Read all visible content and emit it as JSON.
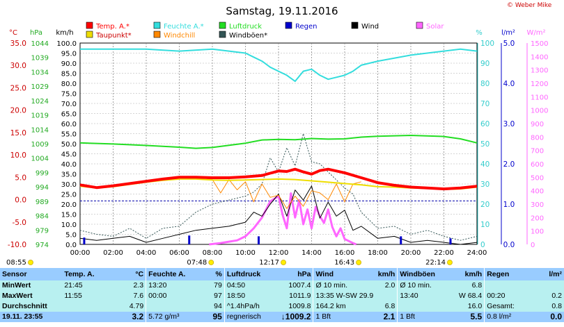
{
  "chart_data": {
    "type": "line",
    "title": "Samstag, 19.11.2016",
    "x_labels": [
      "00:00",
      "02:00",
      "04:00",
      "06:00",
      "08:00",
      "10:00",
      "12:00",
      "14:00",
      "16:00",
      "18:00",
      "20:00",
      "22:00",
      "24:00"
    ],
    "xlim": [
      0,
      24
    ],
    "grid": true,
    "legend": [
      {
        "label": "Temp. A.*",
        "color": "#ff0000"
      },
      {
        "label": "Feuchte A.*",
        "color": "#33dddd"
      },
      {
        "label": "Luftdruck",
        "color": "#22dd22"
      },
      {
        "label": "Regen",
        "color": "#0000cc"
      },
      {
        "label": "Wind",
        "color": "#000000"
      },
      {
        "label": "Solar",
        "color": "#ff66ff"
      },
      {
        "label": "Taupunkt*",
        "color": "#eedd00"
      },
      {
        "label": "Windchill",
        "color": "#ff8800"
      },
      {
        "label": "Windböen*",
        "color": "#335555"
      }
    ],
    "axes": {
      "temp": {
        "unit": "°C",
        "ticks": [
          "35.0",
          "30.0",
          "25.0",
          "20.0",
          "15.0",
          "10.0",
          "5.0",
          "0.0",
          "-5.0",
          "-10.0"
        ],
        "range": [
          -10,
          35
        ],
        "color": "#cc0000"
      },
      "press": {
        "unit": "hPa",
        "ticks": [
          "1044",
          "1039",
          "1034",
          "1029",
          "1024",
          "1019",
          "1014",
          "1009",
          "1004",
          "999",
          "994",
          "989",
          "984",
          "979",
          "974"
        ],
        "range": [
          974,
          1044
        ],
        "color": "#22aa22"
      },
      "wind": {
        "unit": "km/h",
        "ticks": [
          "100.0",
          "95.0",
          "90.0",
          "85.0",
          "80.0",
          "75.0",
          "70.0",
          "65.0",
          "60.0",
          "55.0",
          "50.0",
          "45.0",
          "40.0",
          "35.0",
          "30.0",
          "25.0",
          "20.0",
          "15.0",
          "10.0",
          "5.0",
          "0.0"
        ],
        "range": [
          0,
          100
        ],
        "color": "#000000"
      },
      "hum": {
        "unit": "%",
        "ticks": [
          "100",
          "90",
          "80",
          "70",
          "60",
          "50",
          "40",
          "30",
          "20",
          "10",
          "0"
        ],
        "range": [
          0,
          100
        ],
        "color": "#33cccc"
      },
      "rain": {
        "unit": "l/m²",
        "ticks": [
          "5.0",
          "4.0",
          "3.0",
          "2.0",
          "1.0",
          "0.0"
        ],
        "range": [
          0,
          5
        ],
        "color": "#0000cc"
      },
      "solar": {
        "unit": "W/m²",
        "ticks": [
          "1500",
          "1400",
          "1300",
          "1200",
          "1100",
          "1000",
          "900",
          "800",
          "700",
          "600",
          "500",
          "400",
          "300",
          "200",
          "100",
          "0"
        ],
        "range": [
          0,
          1500
        ],
        "color": "#ff66ff"
      }
    },
    "series": [
      {
        "name": "Temp. A.*",
        "axis": "temp",
        "color": "#ff0000",
        "x": [
          0,
          1,
          2,
          3,
          4,
          5,
          6,
          7,
          8,
          9,
          10,
          11,
          11.5,
          12,
          12.5,
          13,
          13.5,
          14,
          14.5,
          15,
          16,
          17,
          18,
          19,
          20,
          21,
          22,
          23,
          24
        ],
        "y": [
          3.3,
          2.7,
          3.1,
          3.6,
          4.1,
          4.6,
          5.0,
          5.0,
          4.9,
          4.9,
          5.1,
          5.4,
          5.9,
          6.4,
          6.3,
          6.8,
          6.2,
          5.7,
          6.5,
          6.8,
          6.0,
          4.9,
          3.8,
          3.2,
          2.8,
          2.6,
          2.4,
          2.6,
          3.0
        ]
      },
      {
        "name": "Taupunkt*",
        "axis": "temp",
        "color": "#eedd00",
        "x": [
          0,
          1,
          2,
          3,
          4,
          5,
          6,
          7,
          8,
          9,
          10,
          11,
          12,
          13,
          14,
          15,
          16,
          17,
          18,
          19,
          20,
          21,
          22,
          23,
          24
        ],
        "y": [
          3.0,
          2.6,
          2.9,
          3.4,
          3.9,
          4.3,
          4.6,
          4.6,
          4.4,
          4.3,
          4.4,
          4.5,
          4.6,
          4.5,
          4.2,
          3.9,
          3.6,
          3.3,
          2.9,
          2.8,
          2.6,
          2.5,
          2.3,
          2.4,
          2.8
        ]
      },
      {
        "name": "Windchill",
        "axis": "temp",
        "color": "#ff8800",
        "x": [
          7.5,
          8,
          8.5,
          9,
          9.5,
          10,
          10.5,
          11,
          11.5,
          12,
          12.5,
          13,
          13.5,
          14,
          14.5,
          15,
          15.5,
          16,
          16.5,
          17
        ],
        "y": [
          4.8,
          4.5,
          1.5,
          4.5,
          2.2,
          4.0,
          -0.5,
          3.5,
          0.5,
          1.0,
          -2.0,
          0.8,
          -1.5,
          2.0,
          1.5,
          0.0,
          3.5,
          -0.5,
          3.5,
          4.0
        ]
      },
      {
        "name": "Luftdruck",
        "axis": "press",
        "color": "#22dd22",
        "x": [
          0,
          2,
          4,
          6,
          7,
          8,
          10,
          11,
          12,
          13,
          14,
          15,
          16,
          17,
          18,
          20,
          22,
          23,
          24
        ],
        "y": [
          1009.3,
          1008.9,
          1008.4,
          1007.8,
          1007.4,
          1007.7,
          1009.2,
          1010.3,
          1010.5,
          1010.4,
          1010.8,
          1010.6,
          1010.7,
          1011.3,
          1011.6,
          1011.9,
          1011.5,
          1010.7,
          1009.3
        ]
      },
      {
        "name": "Feuchte A.*",
        "axis": "hum",
        "color": "#33dddd",
        "x": [
          0,
          2,
          4,
          6,
          8,
          9,
          10,
          10.5,
          11,
          11.5,
          12,
          12.5,
          13,
          13.5,
          14,
          14.5,
          15,
          15.5,
          16,
          16.5,
          17,
          18,
          20,
          22,
          23,
          24
        ],
        "y": [
          97,
          97,
          97,
          96,
          97,
          96,
          95,
          93,
          91,
          88,
          86,
          84,
          81,
          86,
          87,
          84,
          82,
          83,
          84,
          86,
          89,
          91,
          94,
          96,
          97,
          96
        ]
      },
      {
        "name": "Wind",
        "axis": "wind",
        "color": "#000000",
        "x": [
          0,
          1,
          2,
          3,
          4,
          5,
          6,
          7,
          8,
          9,
          10,
          10.5,
          11,
          11.5,
          12,
          12.5,
          13,
          13.5,
          14,
          14.5,
          15,
          15.5,
          16,
          16.5,
          17,
          18,
          19,
          20,
          21,
          22,
          23,
          24
        ],
        "y": [
          3,
          2,
          3,
          4,
          1,
          3,
          5,
          7,
          8,
          9,
          11,
          16,
          14,
          20,
          25,
          14,
          27,
          22,
          29,
          13,
          21,
          14,
          17,
          7,
          9,
          3,
          4,
          1,
          2,
          1,
          0,
          1
        ]
      },
      {
        "name": "Windböen*",
        "axis": "wind",
        "color": "#335555",
        "x": [
          0,
          1,
          2,
          3,
          4,
          5,
          6,
          7,
          8,
          9,
          10,
          10.5,
          11,
          11.5,
          12,
          12.5,
          13,
          13.5,
          14,
          14.5,
          15,
          15.5,
          16,
          16.5,
          17,
          18,
          19,
          20,
          21,
          22,
          23,
          24
        ],
        "y": [
          7,
          5,
          4,
          8,
          3,
          8,
          9,
          16,
          20,
          22,
          24,
          26,
          30,
          43,
          36,
          48,
          39,
          55,
          41,
          40,
          36,
          32,
          28,
          25,
          16,
          8,
          9,
          5,
          7,
          4,
          2,
          4
        ]
      },
      {
        "name": "Solar",
        "axis": "solar",
        "color": "#ff66ff",
        "x": [
          7.8,
          8.5,
          9,
          9.5,
          10,
          10.5,
          11,
          11.5,
          12,
          12.25,
          12.5,
          12.75,
          13,
          13.25,
          13.5,
          13.75,
          14,
          14.25,
          14.5,
          14.75,
          15,
          15.25,
          15.5,
          15.75,
          16,
          16.5,
          16.7
        ],
        "y": [
          0,
          10,
          20,
          30,
          60,
          120,
          200,
          320,
          360,
          220,
          120,
          380,
          200,
          330,
          150,
          260,
          120,
          280,
          210,
          160,
          260,
          130,
          60,
          120,
          40,
          10,
          0
        ]
      }
    ],
    "rain_bars": [
      {
        "x": 0.25,
        "y": 0.17
      },
      {
        "x": 6.6,
        "y": 0.22
      },
      {
        "x": 10.8,
        "y": 0.2
      },
      {
        "x": 19.4,
        "y": 0.2
      },
      {
        "x": 22.4,
        "y": 0.15
      }
    ],
    "marker_line": {
      "axis": "rain",
      "value": 1.08,
      "color": "#0000aa"
    },
    "bottom_events": [
      {
        "time": "08:55",
        "x": 0.02,
        "color": "#000"
      },
      {
        "time": "07:48",
        "x": 7.8,
        "color": "#000"
      },
      {
        "time": "12:17",
        "x": 12.17,
        "color": "#000"
      },
      {
        "time": "16:43",
        "x": 16.72,
        "color": "#000"
      },
      {
        "time": "22:14",
        "x": 22.23,
        "color": "#000"
      }
    ]
  },
  "copyright": "© Weber Mike",
  "stats": {
    "headers": [
      "Sensor",
      "Temp. A.",
      "°C",
      "Feuchte A.",
      "%",
      "Luftdruck",
      "hPa",
      "Wind",
      "km/h",
      "Windböen",
      "km/h",
      "Regen",
      "l/m²"
    ],
    "rows": [
      [
        "MinWert",
        "21:45",
        "2.3",
        "13:20",
        "79",
        "04:50",
        "1007.4",
        "Ø 10 min.",
        "2.0",
        "Ø 10 min.",
        "6.8",
        "",
        ""
      ],
      [
        "MaxWert",
        "11:55",
        "7.6",
        "00:00",
        "97",
        "18:50",
        "1011.9",
        "13:35   W-SW 29.9",
        "",
        "13:40",
        "W 68.4",
        "00:20",
        "0.2"
      ],
      [
        "Durchschnitt",
        "",
        "4.79",
        "",
        "94",
        "^1.4hPa/h",
        "1009.8",
        "164.2 km",
        "6.8",
        "",
        "16.0",
        "Gesamt:",
        "0.8"
      ]
    ],
    "last": [
      "19.11. 23:55",
      "",
      "3.2",
      "5.72 g/m³",
      "95",
      "regnerisch",
      "↓1009.2",
      "1 Bft",
      "2.1",
      "1 Bft",
      "5.5",
      "0.8 l/m²",
      "0.0"
    ]
  }
}
